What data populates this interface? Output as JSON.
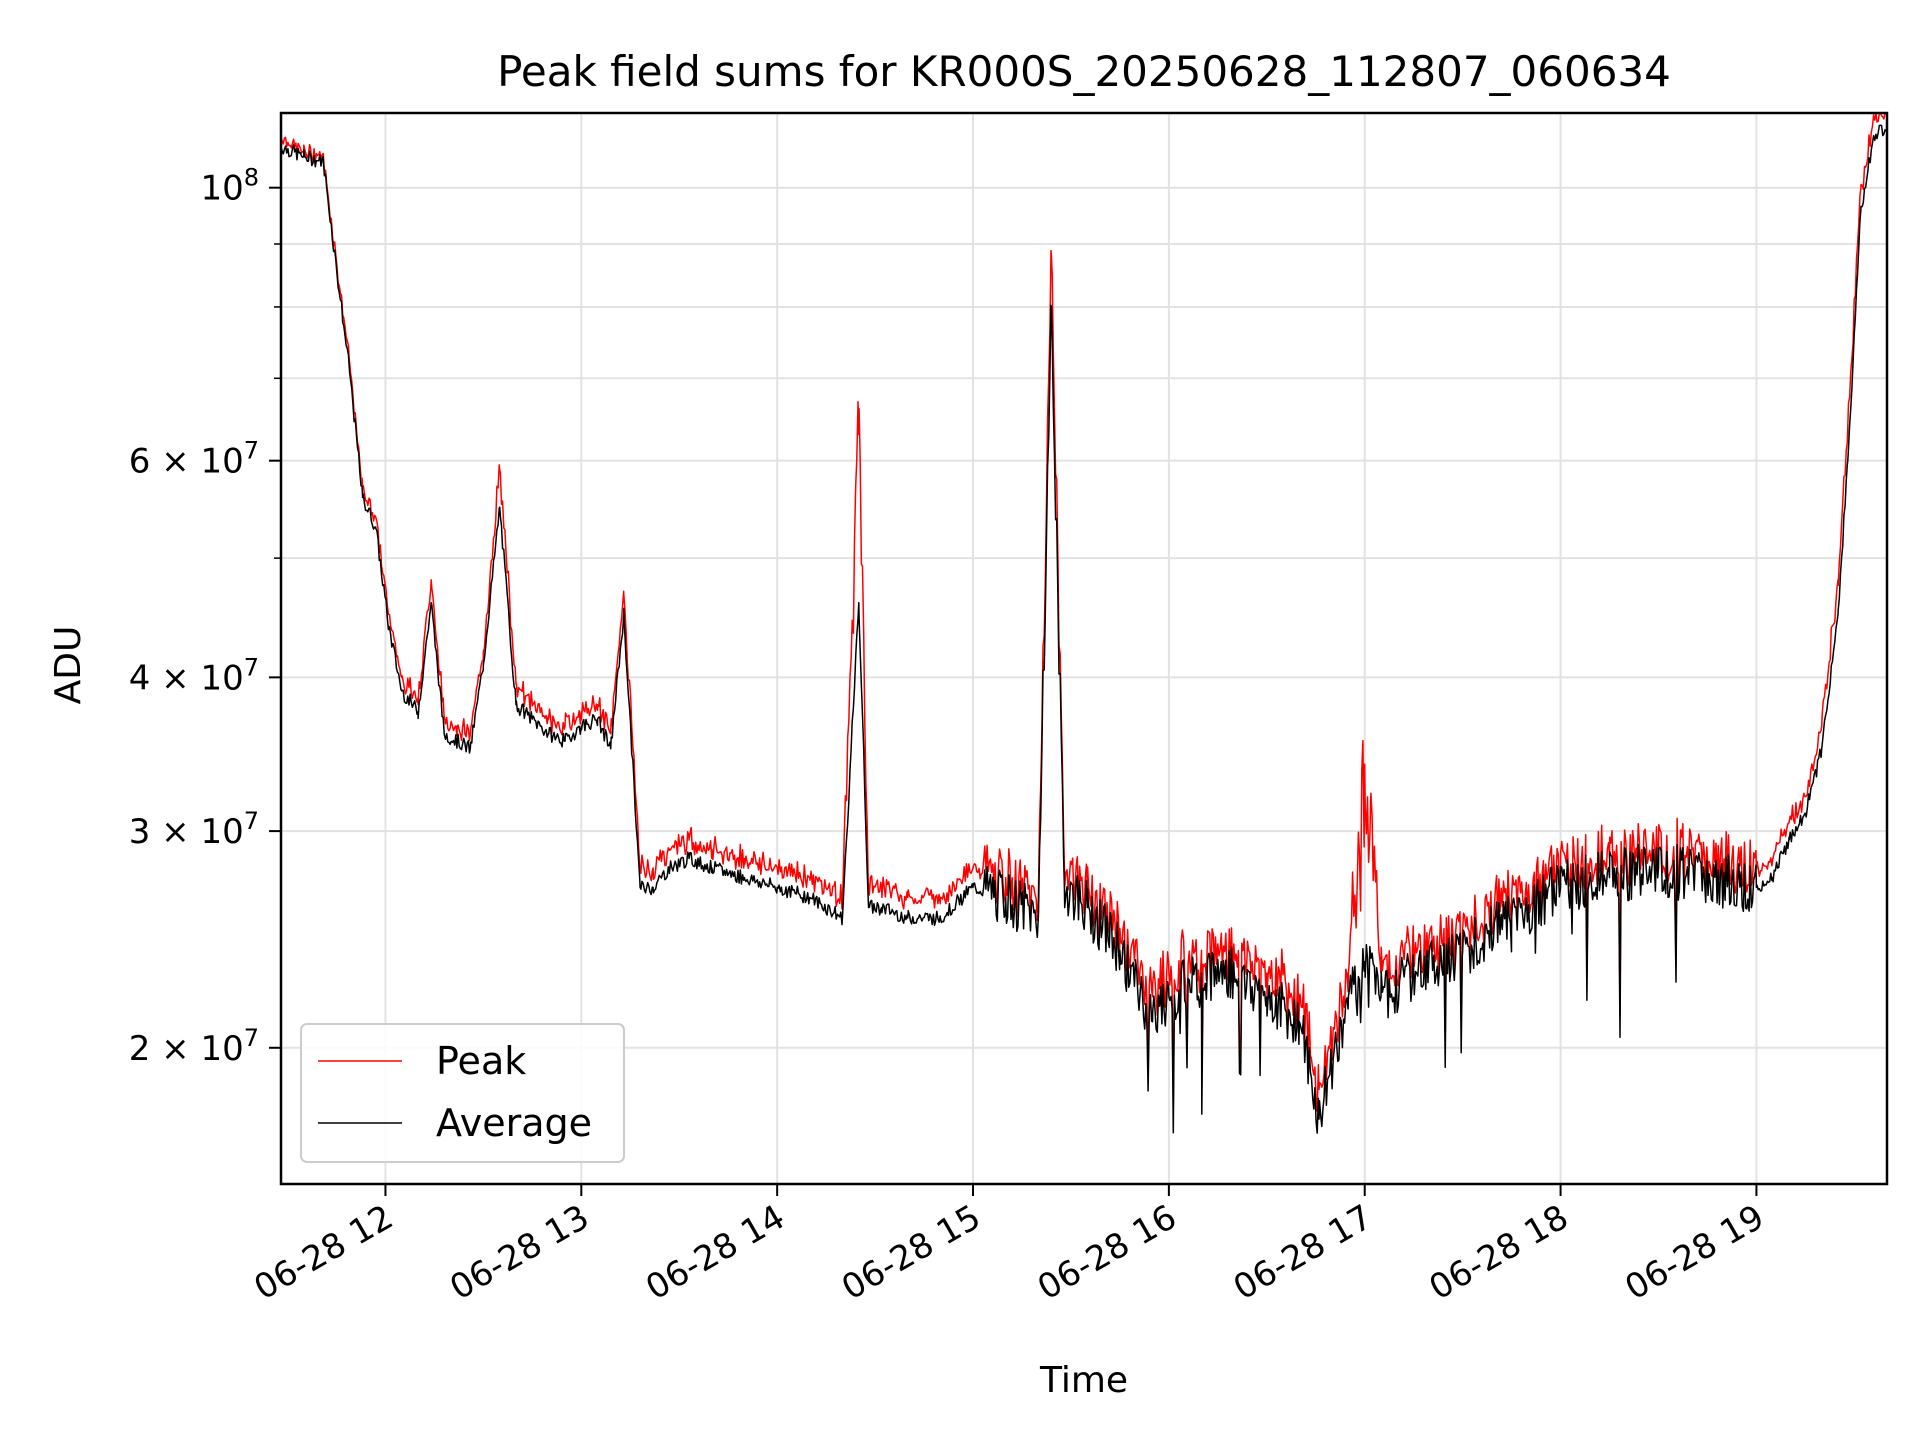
{
  "chart_data": {
    "type": "line",
    "title": "Peak field sums for KR000S_20250628_112807_060634",
    "xlabel": "Time",
    "ylabel": "ADU",
    "yscale": "log",
    "grid": true,
    "legend_position": "bottom-left",
    "xlim": [
      "2025-06-28 11:28",
      "2025-06-28 19:40"
    ],
    "ylim": [
      15500000,
      115000000
    ],
    "x_ticks": [
      {
        "t": "2025-06-28 12:00",
        "label": "06-28 12"
      },
      {
        "t": "2025-06-28 13:00",
        "label": "06-28 13"
      },
      {
        "t": "2025-06-28 14:00",
        "label": "06-28 14"
      },
      {
        "t": "2025-06-28 15:00",
        "label": "06-28 15"
      },
      {
        "t": "2025-06-28 16:00",
        "label": "06-28 16"
      },
      {
        "t": "2025-06-28 17:00",
        "label": "06-28 17"
      },
      {
        "t": "2025-06-28 18:00",
        "label": "06-28 18"
      },
      {
        "t": "2025-06-28 19:00",
        "label": "06-28 19"
      }
    ],
    "y_ticks_major": [
      {
        "value": 100000000,
        "base": "10",
        "exp": "8"
      },
      {
        "value": 60000000,
        "base": "6 × 10",
        "exp": "7"
      },
      {
        "value": 40000000,
        "base": "4 × 10",
        "exp": "7"
      },
      {
        "value": 30000000,
        "base": "3 × 10",
        "exp": "7"
      },
      {
        "value": 20000000,
        "base": "2 × 10",
        "exp": "7"
      }
    ],
    "y_ticks_minor": [
      90000000,
      80000000,
      70000000,
      50000000
    ],
    "series": [
      {
        "name": "Peak",
        "color": "#ff0000",
        "role": "peak"
      },
      {
        "name": "Average",
        "color": "#000000",
        "role": "average"
      }
    ],
    "x": [
      "11:28",
      "11:35",
      "11:41",
      "11:45",
      "11:49",
      "11:53",
      "11:57",
      "12:01",
      "12:05",
      "12:10",
      "12:14",
      "12:18",
      "12:22",
      "12:26",
      "12:30",
      "12:35",
      "12:40",
      "12:45",
      "12:50",
      "12:55",
      "13:00",
      "13:05",
      "13:09",
      "13:13",
      "13:18",
      "13:22",
      "13:27",
      "13:33",
      "13:40",
      "13:50",
      "14:00",
      "14:10",
      "14:20",
      "14:25",
      "14:28",
      "14:32",
      "14:40",
      "14:50",
      "15:00",
      "15:10",
      "15:20",
      "15:24",
      "15:28",
      "15:35",
      "15:45",
      "15:55",
      "16:00",
      "16:10",
      "16:20",
      "16:30",
      "16:40",
      "16:46",
      "16:55",
      "17:00",
      "17:05",
      "17:15",
      "17:30",
      "17:45",
      "18:00",
      "18:15",
      "18:30",
      "18:45",
      "19:00",
      "19:05",
      "19:10",
      "19:15",
      "19:20",
      "19:25",
      "19:28",
      "19:32",
      "19:36",
      "19:40"
    ],
    "average": [
      108000000,
      106000000,
      105000000,
      86000000,
      71000000,
      56000000,
      53000000,
      44000000,
      39000000,
      37500000,
      46000000,
      36000000,
      35500000,
      35000000,
      41000000,
      55000000,
      38000000,
      37000000,
      36000000,
      35500000,
      36500000,
      37000000,
      35000000,
      45000000,
      27000000,
      27000000,
      28000000,
      28500000,
      28000000,
      27500000,
      27000000,
      26500000,
      25500000,
      46000000,
      26000000,
      26000000,
      25500000,
      25500000,
      27000000,
      26500000,
      25500000,
      80000000,
      27000000,
      26000000,
      24000000,
      21000000,
      22000000,
      23000000,
      23000000,
      22000000,
      21000000,
      17500000,
      22000000,
      23500000,
      22000000,
      23000000,
      24000000,
      25500000,
      27000000,
      27500000,
      28000000,
      27500000,
      27000000,
      27500000,
      29500000,
      31000000,
      35000000,
      45000000,
      60000000,
      96000000,
      110000000,
      112000000
    ],
    "peak": [
      110000000,
      107000000,
      106000000,
      87000000,
      72000000,
      57000000,
      54000000,
      45000000,
      40000000,
      38500000,
      48000000,
      37000000,
      36500000,
      36000000,
      42000000,
      59000000,
      39500000,
      38000000,
      37000000,
      36500000,
      37500000,
      38000000,
      36000000,
      47000000,
      28000000,
      28000000,
      29000000,
      29500000,
      29000000,
      28500000,
      28000000,
      27500000,
      26500000,
      63000000,
      27000000,
      27000000,
      26500000,
      26500000,
      28000000,
      27500000,
      26500000,
      88000000,
      28000000,
      27000000,
      25000000,
      22000000,
      23000000,
      24000000,
      24000000,
      23000000,
      22000000,
      18500000,
      23000000,
      34000000,
      23000000,
      24000000,
      25000000,
      26500000,
      28000000,
      28500000,
      29000000,
      28500000,
      28000000,
      28500000,
      30500000,
      32000000,
      36500000,
      48000000,
      64000000,
      100000000,
      114000000,
      115000000
    ]
  }
}
